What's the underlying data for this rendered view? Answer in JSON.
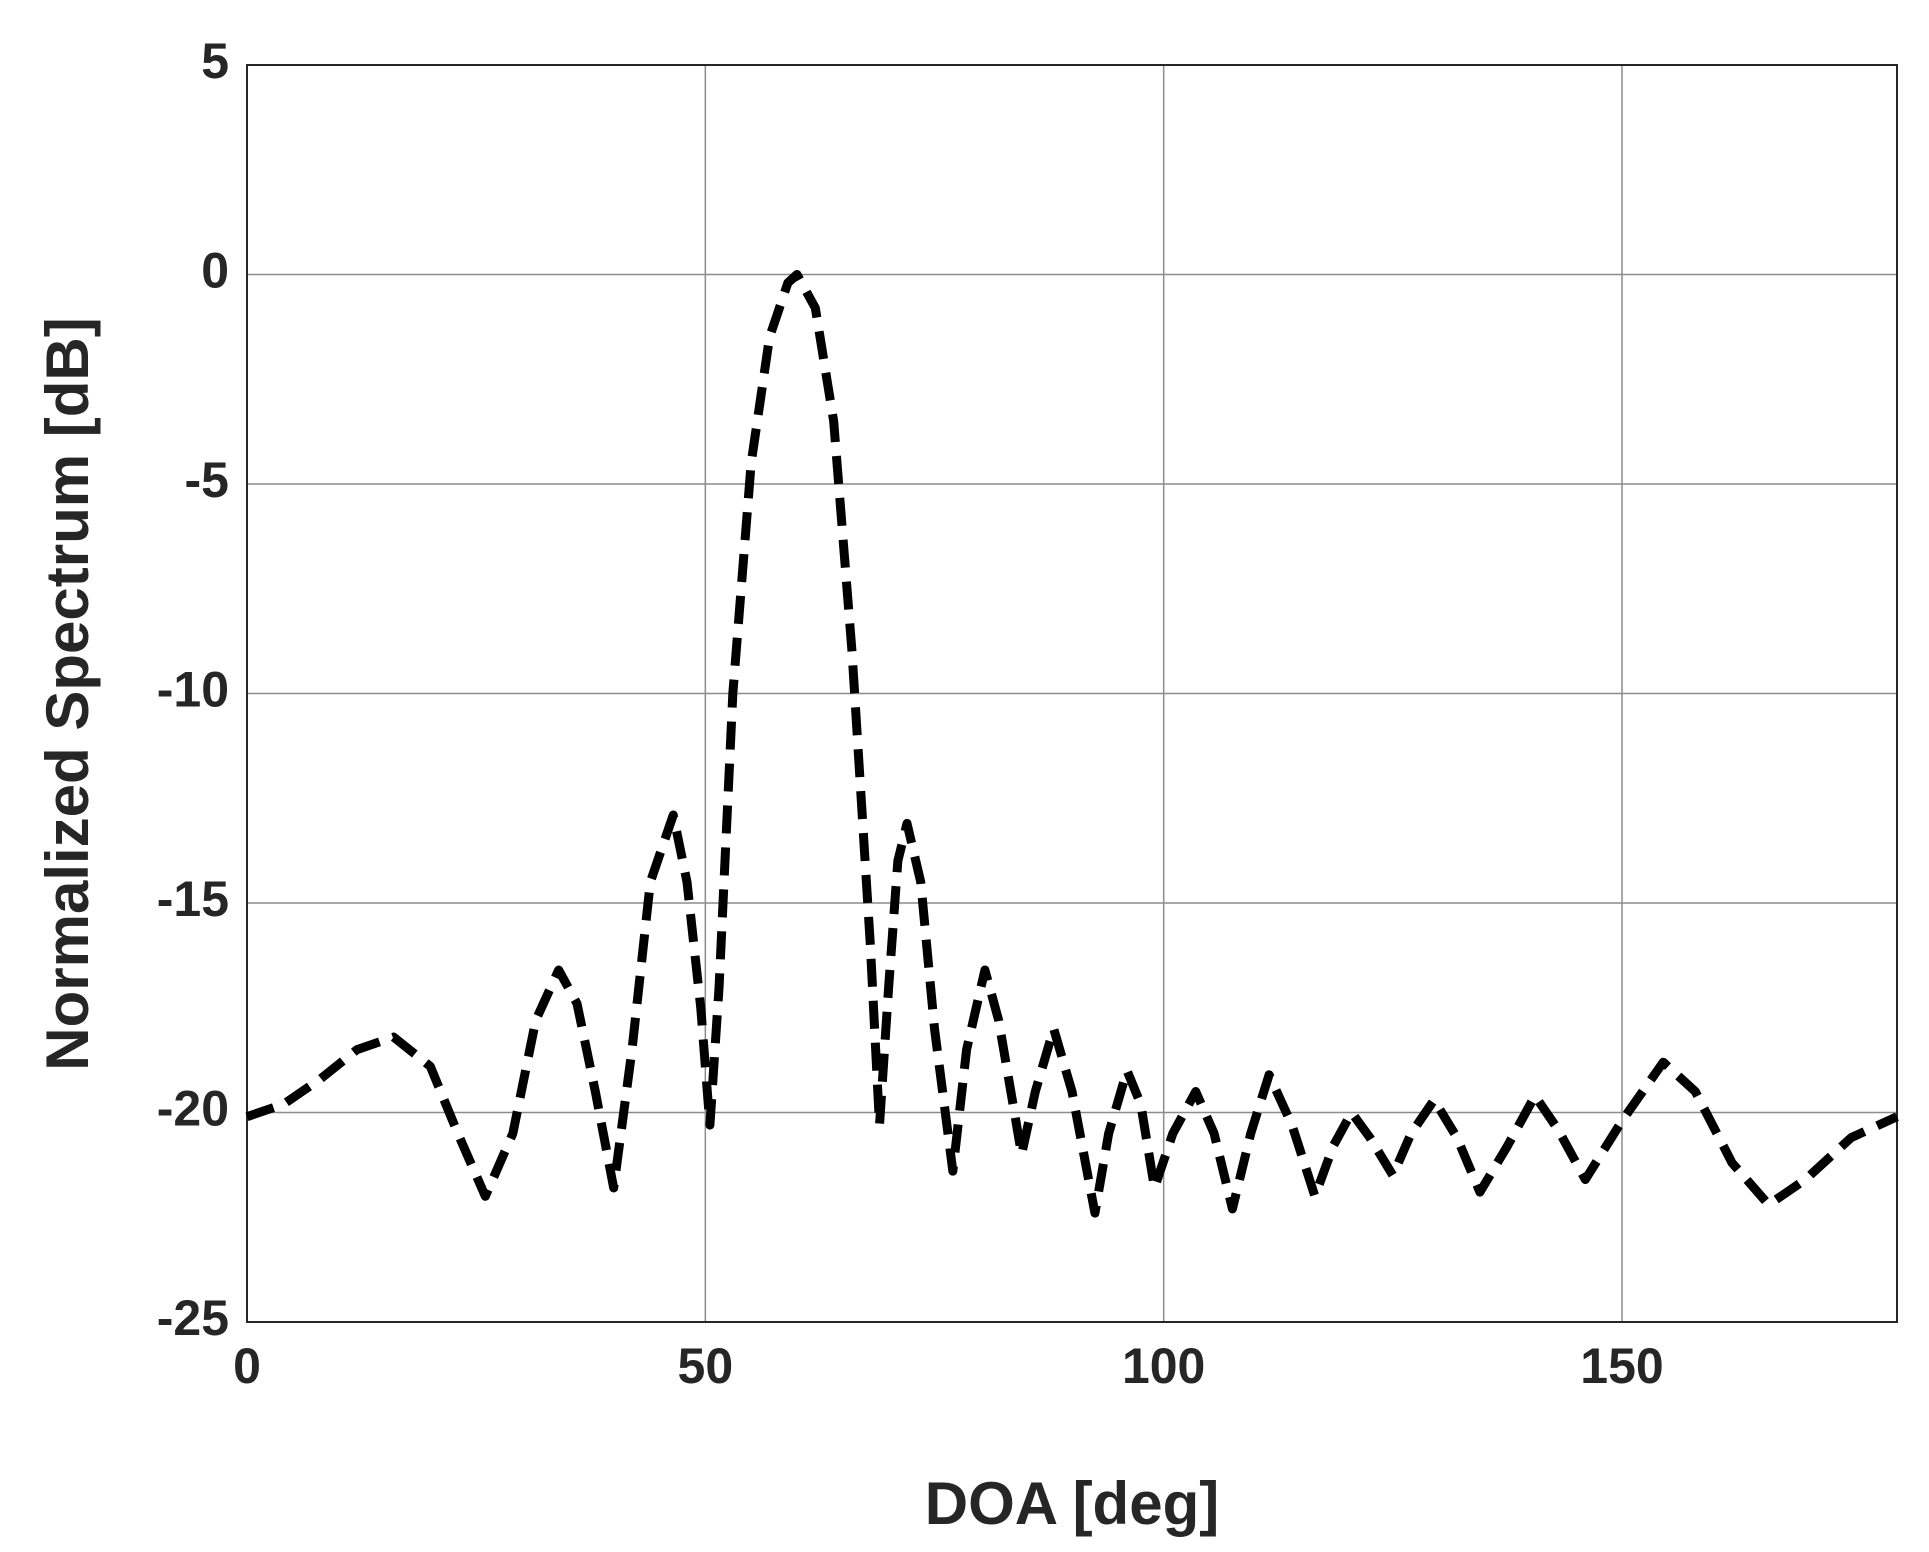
{
  "chart_data": {
    "type": "line",
    "xlabel": "DOA [deg]",
    "ylabel": "Normalized Spectrum [dB]",
    "x": [
      0,
      4,
      8,
      12,
      16,
      20,
      23,
      26,
      29,
      31.5,
      34,
      36,
      38,
      40,
      42,
      44,
      46.5,
      48,
      49.5,
      50.5,
      51.5,
      53,
      55,
      57,
      59,
      60,
      62,
      64,
      66,
      68,
      69,
      70,
      71,
      72,
      73.5,
      75,
      77,
      78.5,
      80.5,
      82,
      84.5,
      86,
      88,
      90,
      92.5,
      94,
      96,
      97.5,
      99,
      101,
      103.5,
      105.5,
      107.5,
      109.5,
      111.5,
      114,
      116.5,
      118.5,
      120.5,
      122.5,
      125,
      127,
      129.5,
      132,
      134.5,
      137.5,
      140.5,
      143,
      146,
      150,
      154.5,
      158,
      162,
      166,
      170,
      175,
      180
    ],
    "series": [
      {
        "color": "#000000",
        "values": [
          -20.1,
          -19.8,
          -19.2,
          -18.5,
          -18.2,
          -18.9,
          -20.5,
          -22.0,
          -20.5,
          -17.8,
          -16.6,
          -17.4,
          -19.5,
          -21.8,
          -18.5,
          -14.5,
          -12.9,
          -14.5,
          -17.5,
          -20.3,
          -17,
          -10,
          -4.5,
          -1.5,
          -0.2,
          0,
          -0.8,
          -3.5,
          -9,
          -16,
          -20.3,
          -17,
          -14,
          -13.1,
          -14.5,
          -18,
          -21.4,
          -18.5,
          -16.6,
          -17.8,
          -21.0,
          -19.5,
          -18.0,
          -19.5,
          -22.4,
          -20.5,
          -19.0,
          -19.8,
          -21.8,
          -20.5,
          -19.5,
          -20.5,
          -22.3,
          -20.5,
          -19.1,
          -20.3,
          -22.0,
          -20.8,
          -20.0,
          -20.6,
          -21.5,
          -20.5,
          -19.7,
          -20.6,
          -21.9,
          -20.8,
          -19.6,
          -20.4,
          -21.6,
          -20.2,
          -18.8,
          -19.5,
          -21.2,
          -22.2,
          -21.6,
          -20.6,
          -20.1
        ]
      }
    ],
    "xlim": [
      0,
      180
    ],
    "xticks": [
      0,
      50,
      100,
      150
    ],
    "ylim": [
      -25,
      5
    ],
    "yticks": [
      -25,
      -20,
      -15,
      -10,
      -5,
      0,
      5
    ],
    "grid": true
  }
}
